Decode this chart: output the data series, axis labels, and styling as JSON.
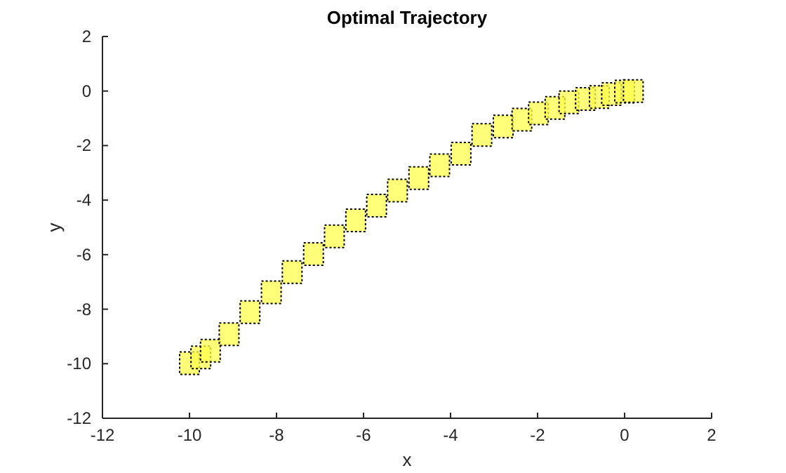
{
  "chart_data": {
    "type": "scatter",
    "title": "Optimal Trajectory",
    "xlabel": "x",
    "ylabel": "y",
    "xlim": [
      -12,
      2
    ],
    "xticks": [
      -12,
      -10,
      -8,
      -6,
      -4,
      -2,
      0,
      2
    ],
    "ylim": [
      -12,
      2
    ],
    "yticks": [
      -12,
      -10,
      -8,
      -6,
      -4,
      -2,
      0,
      2
    ],
    "grid": false,
    "marker": "square",
    "series": [
      {
        "color": "#ffff4d",
        "x": [
          -10.0,
          -9.74,
          -9.52,
          -9.09,
          -8.61,
          -8.12,
          -7.64,
          -7.15,
          -6.67,
          -6.18,
          -5.7,
          -5.22,
          -4.73,
          -4.25,
          -3.76,
          -3.28,
          -2.79,
          -2.36,
          -1.98,
          -1.6,
          -1.28,
          -0.9,
          -0.58,
          -0.3,
          0.0,
          0.2
        ],
        "values": [
          -9.98,
          -9.77,
          -9.52,
          -8.92,
          -8.11,
          -7.38,
          -6.64,
          -5.98,
          -5.33,
          -4.74,
          -4.2,
          -3.65,
          -3.19,
          -2.72,
          -2.3,
          -1.61,
          -1.3,
          -1.05,
          -0.82,
          -0.62,
          -0.41,
          -0.29,
          -0.22,
          -0.11,
          -0.02,
          0.0
        ]
      }
    ]
  }
}
